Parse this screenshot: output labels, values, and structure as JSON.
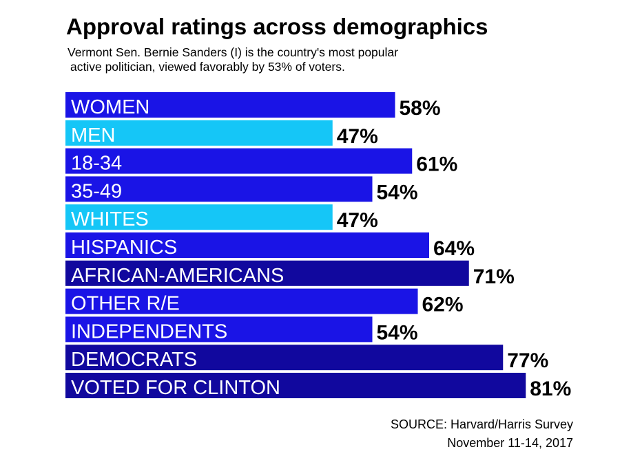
{
  "header": {
    "title": "Approval ratings across demographics",
    "subtitle_line1": "Vermont Sen. Bernie Sanders (I) is the country's most popular",
    "subtitle_line2": "active politician, viewed favorably by 53% of voters."
  },
  "footer": {
    "source_line1": "SOURCE: Harvard/Harris Survey",
    "source_line2": "November 11-14, 2017"
  },
  "colors": {
    "blue": "#1a14e6",
    "light_blue": "#15c6f7",
    "dark_blue": "#11089e",
    "label_text": "#ffffff",
    "value_text": "#000000"
  },
  "chart_data": {
    "type": "bar",
    "orientation": "horizontal",
    "categories": [
      "WOMEN",
      "MEN",
      "18-34",
      "35-49",
      "WHITES",
      "HISPANICS",
      "AFRICAN-AMERICANS",
      "OTHER R/E",
      "INDEPENDENTS",
      "DEMOCRATS",
      "VOTED FOR CLINTON"
    ],
    "values": [
      58,
      47,
      61,
      54,
      47,
      64,
      71,
      62,
      54,
      77,
      81
    ],
    "value_labels": [
      "58%",
      "47%",
      "61%",
      "54%",
      "47%",
      "64%",
      "71%",
      "62%",
      "54%",
      "77%",
      "81%"
    ],
    "bar_colors": [
      "blue",
      "light_blue",
      "blue",
      "blue",
      "light_blue",
      "blue",
      "dark_blue",
      "blue",
      "blue",
      "dark_blue",
      "dark_blue"
    ],
    "unit": "%",
    "title": "Approval ratings across demographics",
    "xlabel": "",
    "ylabel": "",
    "grid": false,
    "legend": "none"
  }
}
